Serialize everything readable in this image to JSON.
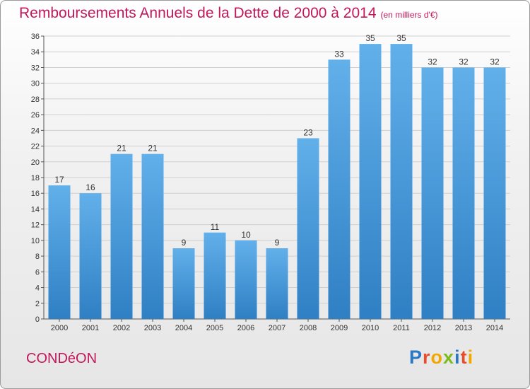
{
  "chart_data": {
    "type": "bar",
    "title": "Remboursements Annuels de la Dette de 2000 à 2014",
    "subtitle": "(en milliers d'€)",
    "categories": [
      "2000",
      "2001",
      "2002",
      "2003",
      "2004",
      "2005",
      "2006",
      "2007",
      "2008",
      "2009",
      "2010",
      "2011",
      "2012",
      "2013",
      "2014"
    ],
    "values": [
      17,
      16,
      21,
      21,
      9,
      11,
      10,
      9,
      23,
      33,
      35,
      35,
      32,
      32,
      32
    ],
    "ylim": [
      0,
      36
    ],
    "yticks": [
      0,
      2,
      4,
      6,
      8,
      10,
      12,
      14,
      16,
      18,
      20,
      22,
      24,
      26,
      28,
      30,
      32,
      34,
      36
    ],
    "xlabel": "",
    "ylabel": "",
    "grid": true,
    "bar_color_top": "#62b0ea",
    "bar_color_bottom": "#2f7fc4"
  },
  "footer": {
    "commune": "CONDéON",
    "logo_letters": [
      {
        "ch": "P",
        "color": "#2b78c5"
      },
      {
        "ch": "r",
        "color": "#e44d2e"
      },
      {
        "ch": "o",
        "color": "#f2a800"
      },
      {
        "ch": "x",
        "color": "#7cbb1f"
      },
      {
        "ch": "i",
        "color": "#2b78c5"
      },
      {
        "ch": "t",
        "color": "#e44d2e"
      },
      {
        "ch": "i",
        "color": "#f2a800"
      }
    ]
  },
  "colors": {
    "title": "#c2185b",
    "grid": "#cfcfcf"
  }
}
